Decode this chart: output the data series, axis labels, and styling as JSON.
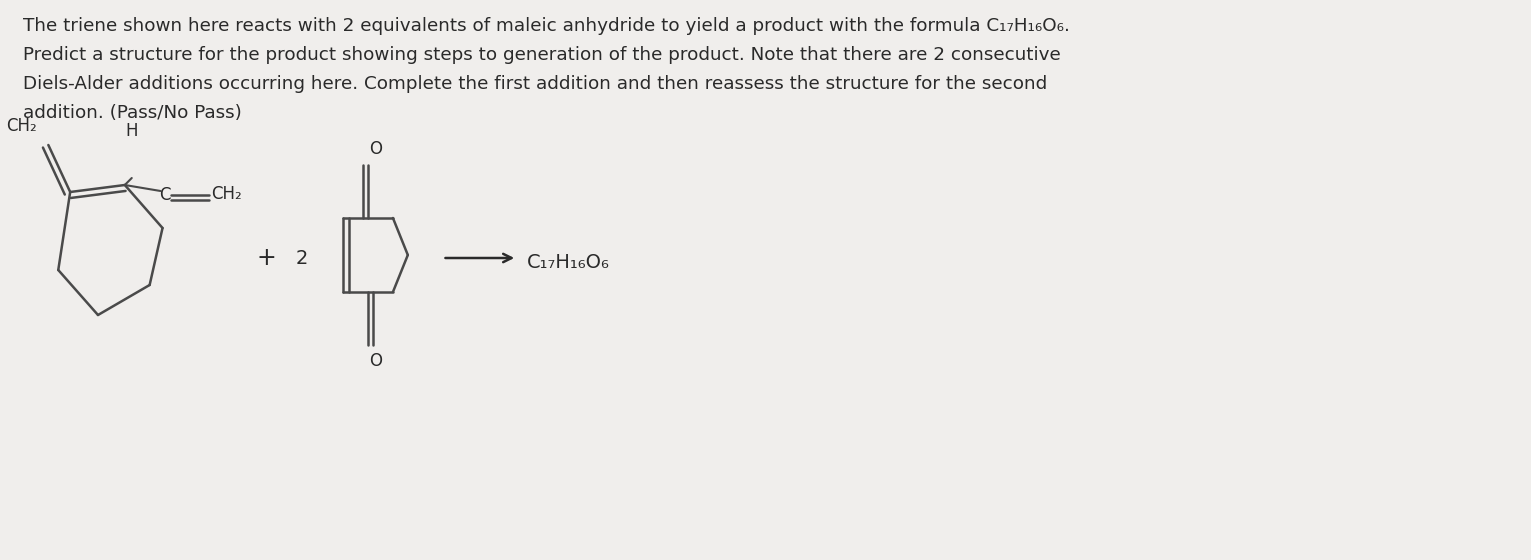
{
  "bg_color": "#f0eeec",
  "text_color": "#2a2a2a",
  "line_color": "#4a4a4a",
  "title_lines": [
    "The triene shown here reacts with 2 equivalents of maleic anhydride to yield a product with the formula C₁₇H₁₆O₆.",
    "Predict a structure for the product showing steps to generation of the product. Note that there are 2 consecutive",
    "Diels-Alder additions occurring here. Complete the first addition and then reassess the structure for the second",
    "addition. (Pass/No Pass)"
  ],
  "figsize": [
    15.31,
    5.6
  ],
  "dpi": 100
}
